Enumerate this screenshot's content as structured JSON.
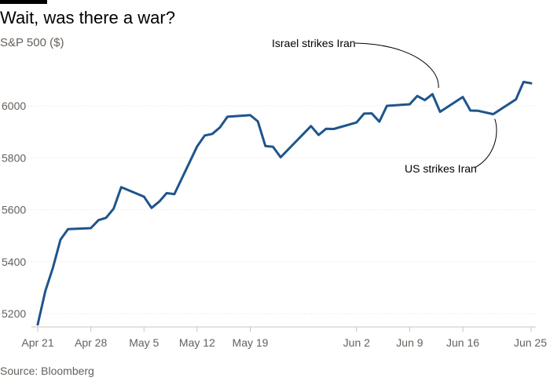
{
  "header": {
    "title": "Wait, was there a war?",
    "subtitle": "S&P 500 ($)"
  },
  "footer": {
    "source": "Source: Bloomberg"
  },
  "colors": {
    "line": "#1e558c",
    "text": "#000000",
    "muted": "#66605c",
    "grid": "#e9e4df",
    "axis": "#c9c3bd"
  },
  "chart_data": {
    "type": "line",
    "x_tick_labels": [
      "Apr 21",
      "Apr 28",
      "May 5",
      "May 12",
      "May 19",
      "Jun 2",
      "Jun 9",
      "Jun 16",
      "Jun 25"
    ],
    "y_tick_labels": [
      "5200",
      "5400",
      "5600",
      "5800",
      "6000"
    ],
    "ylim": [
      5150,
      6100
    ],
    "grid": true,
    "series": [
      {
        "x": [
          "2025-04-21",
          "2025-04-22",
          "2025-04-23",
          "2025-04-24",
          "2025-04-25",
          "2025-04-28",
          "2025-04-29",
          "2025-04-30",
          "2025-05-01",
          "2025-05-02",
          "2025-05-05",
          "2025-05-06",
          "2025-05-07",
          "2025-05-08",
          "2025-05-09",
          "2025-05-12",
          "2025-05-13",
          "2025-05-14",
          "2025-05-15",
          "2025-05-16",
          "2025-05-19",
          "2025-05-20",
          "2025-05-21",
          "2025-05-22",
          "2025-05-23",
          "2025-05-27",
          "2025-05-28",
          "2025-05-29",
          "2025-05-30",
          "2025-06-02",
          "2025-06-03",
          "2025-06-04",
          "2025-06-05",
          "2025-06-06",
          "2025-06-09",
          "2025-06-10",
          "2025-06-11",
          "2025-06-12",
          "2025-06-13",
          "2025-06-16",
          "2025-06-17",
          "2025-06-18",
          "2025-06-20",
          "2025-06-23",
          "2025-06-24",
          "2025-06-25"
        ],
        "values": [
          5158,
          5287,
          5376,
          5485,
          5525,
          5529,
          5560,
          5569,
          5604,
          5687,
          5650,
          5607,
          5631,
          5664,
          5660,
          5844,
          5886,
          5892,
          5917,
          5958,
          5964,
          5940,
          5845,
          5842,
          5802,
          5922,
          5888,
          5912,
          5911,
          5936,
          5970,
          5971,
          5939,
          6000,
          6006,
          6038,
          6022,
          6045,
          5977,
          6034,
          5982,
          5981,
          5968,
          6025,
          6092,
          6087
        ]
      }
    ],
    "annotations": [
      {
        "text": "Israel strikes Iran",
        "x": "2025-06-13"
      },
      {
        "text": "US strikes Iran",
        "x": "2025-06-21"
      }
    ]
  }
}
